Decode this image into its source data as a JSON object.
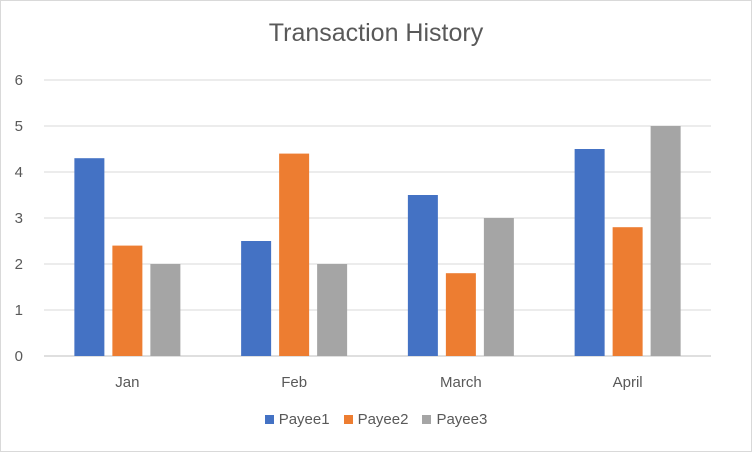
{
  "chart_data": {
    "type": "bar",
    "title": "Transaction History",
    "categories": [
      "Jan",
      "Feb",
      "March",
      "April"
    ],
    "series": [
      {
        "name": "Payee1",
        "color": "#4472c4",
        "values": [
          4.3,
          2.5,
          3.5,
          4.5
        ]
      },
      {
        "name": "Payee2",
        "color": "#ed7d31",
        "values": [
          2.4,
          4.4,
          1.8,
          2.8
        ]
      },
      {
        "name": "Payee3",
        "color": "#a5a5a5",
        "values": [
          2.0,
          2.0,
          3.0,
          5.0
        ]
      }
    ],
    "yticks": [
      "0",
      "1",
      "2",
      "3",
      "4",
      "5",
      "6"
    ],
    "ylim": [
      0,
      6
    ],
    "grid": true,
    "legend_position": "bottom"
  }
}
